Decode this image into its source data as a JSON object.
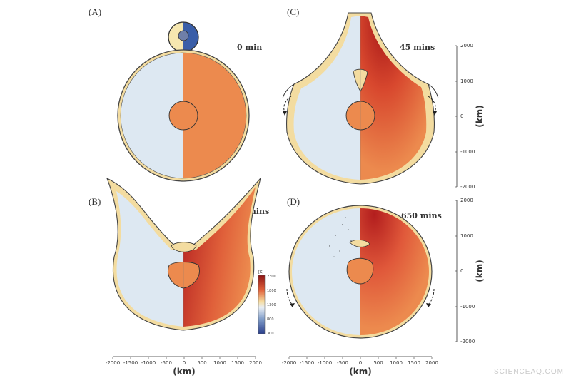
{
  "panels": {
    "a": {
      "label": "(A)",
      "time": "0 min"
    },
    "b": {
      "label": "(B)",
      "time": "10 mins"
    },
    "c": {
      "label": "(C)",
      "time": "45 mins"
    },
    "d": {
      "label": "(D)",
      "time": "650 mins"
    }
  },
  "axes": {
    "x_ticks": [
      "-2000",
      "-1500",
      "-1000",
      "-500",
      "0",
      "500",
      "1000",
      "1500",
      "2000"
    ],
    "y_ticks": [
      "2000",
      "1000",
      "0",
      "-1000",
      "-2000"
    ],
    "unit": "(km)"
  },
  "colorbar": {
    "unit": "[K]",
    "ticks": [
      "2300",
      "1800",
      "1300",
      "800",
      "300"
    ]
  },
  "watermark": "SCIENCEAQ.COM",
  "colors": {
    "material_light": "#dde8f2",
    "mantle_hot": "#ec8a4e",
    "hot_red": "#b41e1e",
    "crust": "#f3dca0",
    "impactor_blue": "#3a5ea8"
  }
}
